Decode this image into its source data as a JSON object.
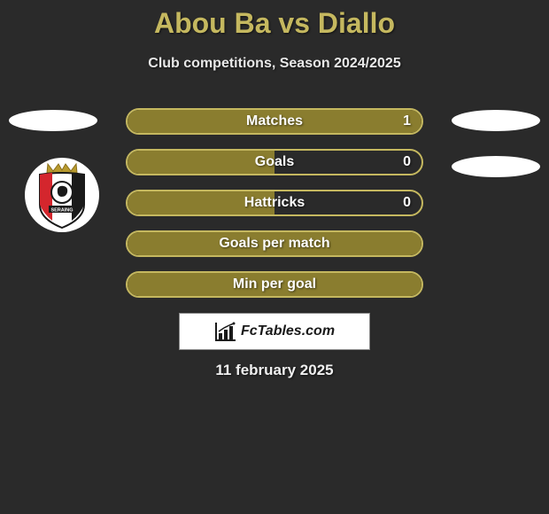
{
  "title": "Abou Ba vs Diallo",
  "subtitle": "Club competitions, Season 2024/2025",
  "date": "11 february 2025",
  "brand": "FcTables.com",
  "colors": {
    "accent": "#c5b85f",
    "accent_dark": "#9a8d3e",
    "fill_olive": "#8a7d2f",
    "background": "#2a2a2a",
    "text_light": "#f0f0f0",
    "white": "#ffffff"
  },
  "stats": [
    {
      "label": "Matches",
      "value": "1",
      "fill_pct": 100,
      "border": "#c5b85f",
      "fill": "#8a7d2f",
      "show_value": true
    },
    {
      "label": "Goals",
      "value": "0",
      "fill_pct": 50,
      "border": "#c5b85f",
      "fill": "#8a7d2f",
      "show_value": true
    },
    {
      "label": "Hattricks",
      "value": "0",
      "fill_pct": 50,
      "border": "#c5b85f",
      "fill": "#8a7d2f",
      "show_value": true
    },
    {
      "label": "Goals per match",
      "value": "",
      "fill_pct": 100,
      "border": "#c5b85f",
      "fill": "#8a7d2f",
      "show_value": false
    },
    {
      "label": "Min per goal",
      "value": "",
      "fill_pct": 100,
      "border": "#c5b85f",
      "fill": "#8a7d2f",
      "show_value": false
    }
  ],
  "badge": {
    "text": "SERAING",
    "crown_color": "#b89a2e",
    "left_stripe": "#d4262d",
    "right_stripe": "#1a1a1a",
    "center_bg": "#ffffff",
    "center_icon": "#1a1a1a"
  }
}
